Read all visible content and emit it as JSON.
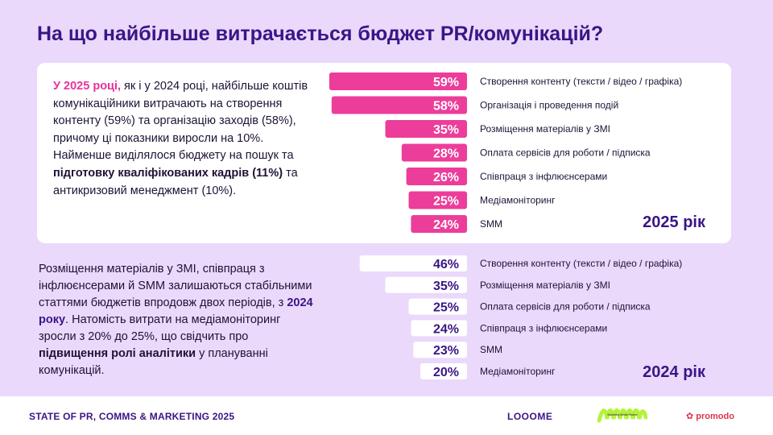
{
  "title": "На що найбільше витрачається бюджет PR/комунікацій?",
  "text_top": {
    "lead": "У 2025 році,",
    "part1": " як і у 2024 році, найбільше коштів комунікаційники витрачають на створення контенту (59%) та організацію заходів (58%), причому ці показники виросли на 10%. Найменше виділялося бюджету на пошук та ",
    "bold": "підготовку кваліфікованих кадрів (11%)",
    "part2": " та антикризовий менеджмент (10%)."
  },
  "text_bottom": {
    "part1": "Розміщення матеріалів у ЗМІ, співпраця з інфлюєнсерами й SMM  залишаються стабільними статтями бюджетів впродовж двох періодів, з ",
    "highlight": "2024 року",
    "part2": ". Натомість витрати на медіамоніторинг зросли з 20% до 25%, що свідчить про ",
    "bold": "підвищення ролі аналітики",
    "part3": " у плануванні комунікацій."
  },
  "footer": {
    "label": "STATE OF PR, COMMS & MARKETING 2025",
    "logo1": "LOOOME",
    "logo2": "Marketing Media Review",
    "logo3": "promodo"
  },
  "colors": {
    "bar_2025": "#ec3d9a",
    "bar_2024": "#ffffff",
    "value_2024": "#3a1586",
    "year_label": "#3a1586"
  },
  "chart_data": [
    {
      "type": "bar",
      "orientation": "horizontal",
      "year_label": "2025 рік",
      "categories": [
        "Створення контенту (тексти / відео / графіка)",
        "Організація і проведення подій",
        "Розміщення матеріалів у ЗМІ",
        "Оплата сервісів для роботи / підписка",
        "Співпраця з інфлюєнсерами",
        "Медіамоніторинг",
        "SMM"
      ],
      "values": [
        59,
        58,
        35,
        28,
        26,
        25,
        24
      ],
      "labels": [
        "59%",
        "58%",
        "35%",
        "28%",
        "26%",
        "25%",
        "24%"
      ]
    },
    {
      "type": "bar",
      "orientation": "horizontal",
      "year_label": "2024 рік",
      "categories": [
        "Створення контенту (тексти / відео / графіка)",
        "Розміщення матеріалів у ЗМІ",
        "Оплата сервісів для роботи / підписка",
        "Співпраця з інфлюєнсерами",
        "SMM",
        "Медіамоніторинг"
      ],
      "values": [
        46,
        35,
        25,
        24,
        23,
        20
      ],
      "labels": [
        "46%",
        "35%",
        "25%",
        "24%",
        "23%",
        "20%"
      ]
    }
  ]
}
